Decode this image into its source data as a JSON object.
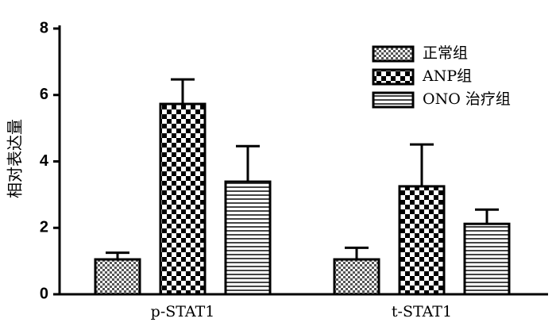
{
  "chart_data": {
    "type": "bar",
    "y_label": "相对表达量",
    "categories": [
      "p-STAT1",
      "t-STAT1"
    ],
    "series": [
      {
        "name": "正常组",
        "color": "#000000",
        "pattern": "fine-checker",
        "values": [
          1.05,
          1.05
        ],
        "errors": [
          0.2,
          0.35
        ]
      },
      {
        "name": "ANP组",
        "color": "#000000",
        "pattern": "checker",
        "values": [
          5.73,
          3.25
        ],
        "errors": [
          0.74,
          1.26
        ]
      },
      {
        "name": "ONO 治疗组",
        "color": "#000000",
        "pattern": "horizontal-stripes",
        "values": [
          3.39,
          2.12
        ],
        "errors": [
          1.07,
          0.43
        ]
      }
    ],
    "ylim": [
      0,
      8
    ],
    "yticks": [
      0,
      2,
      4,
      6,
      8
    ],
    "legend": "upper right"
  }
}
